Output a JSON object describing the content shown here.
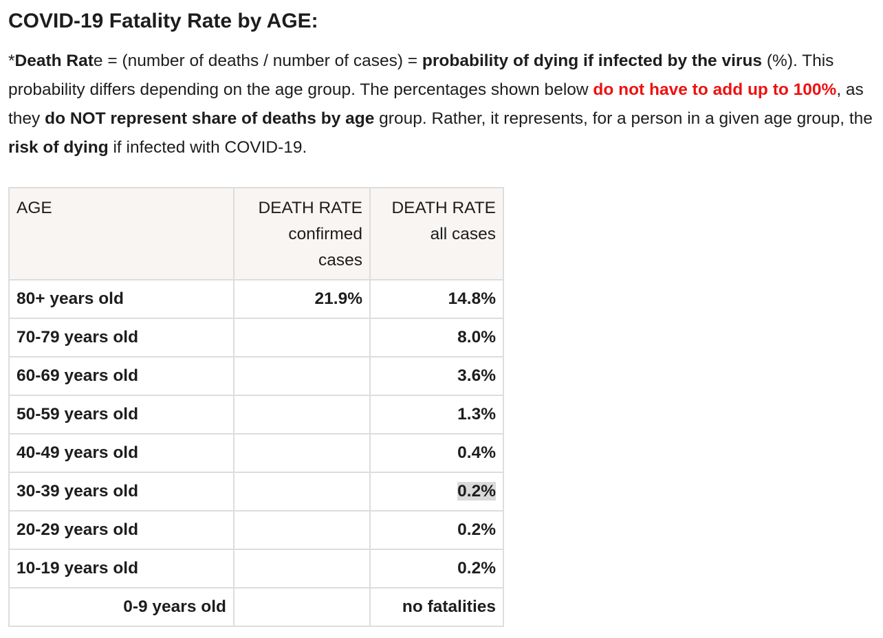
{
  "title": "COVID-19 Fatality Rate by AGE:",
  "intro": {
    "p1": "*",
    "p2": "Death Rat",
    "p3": "e = (number of deaths / number of cases) = ",
    "p4": "probability of dying if infected by the virus",
    "p5": " (%). This probability differs depending on the age group. The percentages shown below ",
    "p6": "do not have to add up to 100%",
    "p7": ", as they ",
    "p8": "do NOT represent share of deaths by age",
    "p9": " group. Rather, it represents, for a person in a given age group, the ",
    "p10": "risk of dying",
    "p11": " if infected with COVID-19."
  },
  "table": {
    "headers": {
      "age": "AGE",
      "confirmed": "DEATH RATE confirmed cases",
      "all": "DEATH RATE all cases"
    },
    "rows": [
      {
        "age": "80+ years old",
        "confirmed": "21.9%",
        "all": "14.8%"
      },
      {
        "age": "70-79 years old",
        "confirmed": "",
        "all": "8.0%"
      },
      {
        "age": "60-69 years old",
        "confirmed": "",
        "all": "3.6%"
      },
      {
        "age": "50-59 years old",
        "confirmed": "",
        "all": "1.3%"
      },
      {
        "age": "40-49 years old",
        "confirmed": "",
        "all": "0.4%"
      },
      {
        "age": "30-39 years old",
        "confirmed": "",
        "all": "0.2%"
      },
      {
        "age": "20-29 years old",
        "confirmed": "",
        "all": "0.2%"
      },
      {
        "age": "10-19 years old",
        "confirmed": "",
        "all": "0.2%"
      },
      {
        "age": "0-9 years old",
        "confirmed": "",
        "all": "no fatalities"
      }
    ]
  },
  "colors": {
    "emphasis_red": "#ee1111",
    "header_bg": "#f8f5f3",
    "border": "#dddddd",
    "selection_highlight": "#dadada"
  }
}
